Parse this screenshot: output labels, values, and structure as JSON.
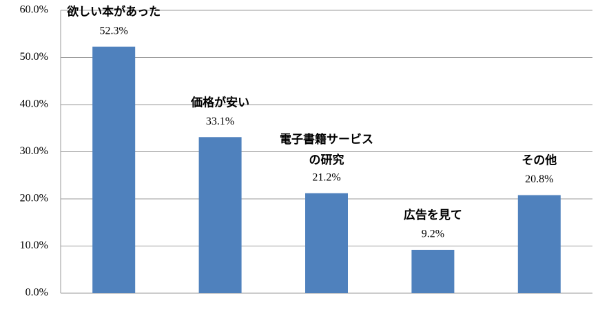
{
  "chart_data": {
    "type": "bar",
    "categories": [
      "欲しい本があった",
      "価格が安い",
      "電子書籍サービスの研究",
      "広告を見て",
      "その他"
    ],
    "values": [
      52.3,
      33.1,
      21.2,
      9.2,
      20.8
    ],
    "value_labels": [
      "52.3%",
      "33.1%",
      "21.2%",
      "9.2%",
      "20.8%"
    ],
    "color": "#4f81bd",
    "ylim": [
      0,
      60
    ],
    "yticks": [
      {
        "value": 0,
        "label": "0.0%"
      },
      {
        "value": 10,
        "label": "10.0%"
      },
      {
        "value": 20,
        "label": "20.0%"
      },
      {
        "value": 30,
        "label": "30.0%"
      },
      {
        "value": 40,
        "label": "40.0%"
      },
      {
        "value": 50,
        "label": "50.0%"
      },
      {
        "value": 60,
        "label": "60.0%"
      }
    ],
    "grid": true
  }
}
